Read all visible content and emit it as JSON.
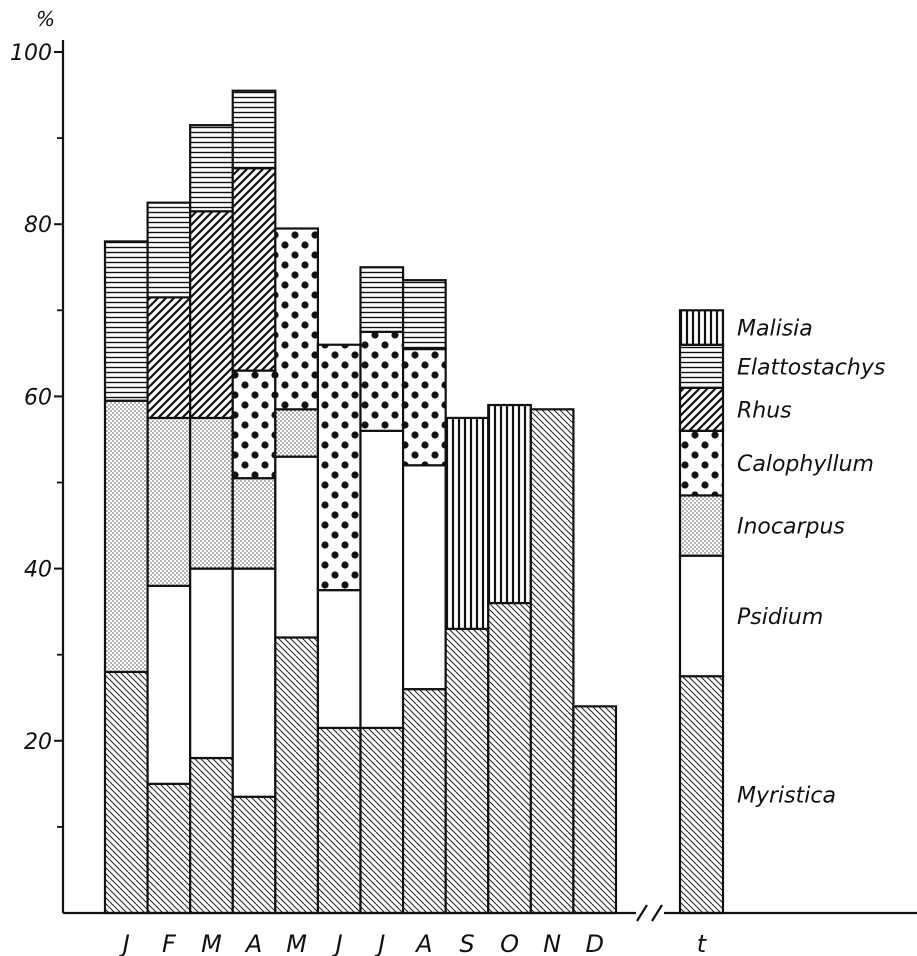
{
  "chart_data": {
    "type": "bar",
    "stacked": true,
    "unit_label": "%",
    "ylim": [
      0,
      100
    ],
    "y_ticks": [
      20,
      40,
      60,
      80,
      100
    ],
    "y_minor_ticks": [
      10,
      30,
      50,
      70,
      90
    ],
    "categories": [
      "J",
      "F",
      "M",
      "A",
      "M",
      "J",
      "J",
      "A",
      "S",
      "O",
      "N",
      "D"
    ],
    "total_category": "t",
    "series": [
      {
        "name": "Myristica",
        "pattern": "diag-back",
        "values": [
          28,
          15,
          18,
          13.5,
          32,
          21.5,
          21.5,
          26,
          33,
          36,
          58.5,
          24
        ],
        "total": 27.5
      },
      {
        "name": "Psidium",
        "pattern": "white",
        "values": [
          0,
          23,
          22,
          26.5,
          21,
          16,
          34.5,
          26,
          0,
          0,
          0,
          0
        ],
        "total": 14
      },
      {
        "name": "Inocarpus",
        "pattern": "stipple",
        "values": [
          31.5,
          19.5,
          17.5,
          10.5,
          5.5,
          0,
          0,
          0,
          0,
          0,
          0,
          0
        ],
        "total": 7
      },
      {
        "name": "Calophyllum",
        "pattern": "dots",
        "values": [
          0,
          0,
          0,
          12.5,
          21,
          28.5,
          11.5,
          13.5,
          0,
          0,
          0,
          0
        ],
        "total": 7.5
      },
      {
        "name": "Rhus",
        "pattern": "diag-forward",
        "values": [
          0,
          14,
          24,
          23.5,
          0,
          0,
          0,
          0,
          0,
          0,
          0,
          0
        ],
        "total": 5
      },
      {
        "name": "Elattostachys",
        "pattern": "horizontal",
        "values": [
          18.5,
          11,
          10,
          9,
          0,
          0,
          7.5,
          8,
          0,
          0,
          0,
          0
        ],
        "total": 5
      },
      {
        "name": "Malisia",
        "pattern": "vertical",
        "values": [
          0,
          0,
          0,
          0,
          0,
          0,
          0,
          0,
          24.5,
          23,
          0,
          0
        ],
        "total": 4
      }
    ]
  }
}
